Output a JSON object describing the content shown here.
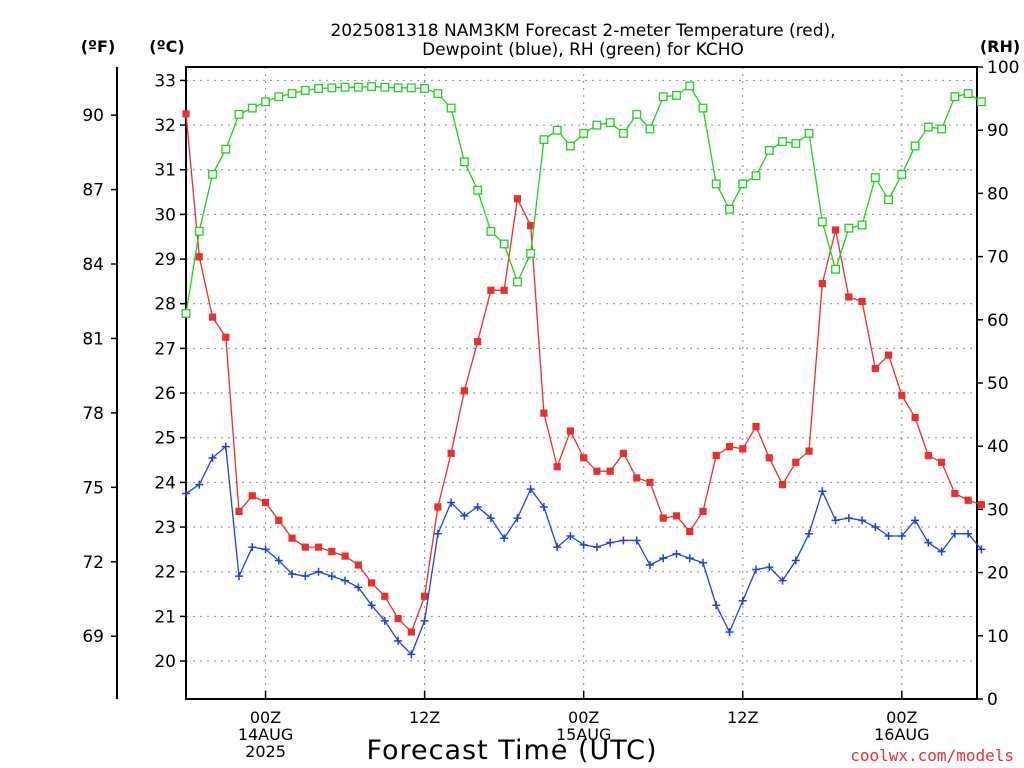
{
  "chart_data": {
    "type": "line",
    "title_line1": "2025081318 NAM3KM Forecast 2-meter Temperature (red),",
    "title_line2": "Dewpoint (blue), RH (green) for KCHO",
    "xlabel": "Forecast Time (UTC)",
    "credit": "coolwx.com/models",
    "left_outer_unit": "(ºF)",
    "left_inner_unit": "(ºC)",
    "right_unit": "(RH)",
    "grid": true,
    "x_ticks": [
      {
        "h": 6,
        "lines": [
          "00Z",
          "14AUG",
          "2025"
        ]
      },
      {
        "h": 18,
        "lines": [
          "12Z"
        ]
      },
      {
        "h": 30,
        "lines": [
          "00Z",
          "15AUG"
        ]
      },
      {
        "h": 42,
        "lines": [
          "12Z"
        ]
      },
      {
        "h": 54,
        "lines": [
          "00Z",
          "16AUG"
        ]
      }
    ],
    "x_unit": "hours after 2025-08-13 18Z",
    "x_range": [
      0,
      59.67
    ],
    "c_axis": {
      "range": [
        19.15,
        33.3
      ],
      "ticks": [
        20,
        21,
        22,
        23,
        24,
        25,
        26,
        27,
        28,
        29,
        30,
        31,
        32,
        33
      ]
    },
    "f_axis": {
      "ticks": [
        69,
        72,
        75,
        78,
        81,
        84,
        87,
        90
      ]
    },
    "rh_axis": {
      "range": [
        0,
        100
      ],
      "ticks": [
        0,
        10,
        20,
        30,
        40,
        50,
        60,
        70,
        80,
        90,
        100
      ]
    },
    "series": [
      {
        "name": "Temperature",
        "unit": "C",
        "color": "#e83030",
        "marker": "filled-square",
        "x": [
          0,
          1,
          2,
          3,
          4,
          5,
          6,
          7,
          8,
          9,
          10,
          11,
          12,
          13,
          14,
          15,
          16,
          17,
          18,
          19,
          20,
          21,
          22,
          23,
          24,
          25,
          26,
          27,
          28,
          29,
          30,
          31,
          32,
          33,
          34,
          35,
          36,
          37,
          38,
          39,
          40,
          41,
          42,
          43,
          44,
          45,
          46,
          47,
          48,
          49,
          50,
          51,
          52,
          53,
          54,
          55,
          56,
          57,
          58,
          59,
          60
        ],
        "values": [
          32.25,
          29.05,
          27.7,
          27.25,
          23.35,
          23.7,
          23.55,
          23.15,
          22.75,
          22.55,
          22.55,
          22.45,
          22.35,
          22.15,
          21.75,
          21.45,
          20.95,
          20.65,
          21.45,
          23.45,
          24.65,
          26.05,
          27.15,
          28.3,
          28.3,
          30.35,
          29.75,
          25.55,
          24.35,
          25.15,
          24.55,
          24.25,
          24.25,
          24.65,
          24.1,
          24.0,
          23.2,
          23.25,
          22.9,
          23.35,
          24.6,
          24.8,
          24.75,
          25.25,
          24.55,
          23.95,
          24.45,
          24.7,
          28.45,
          29.65,
          28.15,
          28.05,
          26.55,
          26.85,
          25.95,
          25.45,
          24.6,
          24.45,
          23.75,
          23.6,
          23.5
        ]
      },
      {
        "name": "Dewpoint",
        "unit": "C",
        "color": "#2040e0",
        "marker": "plus",
        "x": [
          0,
          1,
          2,
          3,
          4,
          5,
          6,
          7,
          8,
          9,
          10,
          11,
          12,
          13,
          14,
          15,
          16,
          17,
          18,
          19,
          20,
          21,
          22,
          23,
          24,
          25,
          26,
          27,
          28,
          29,
          30,
          31,
          32,
          33,
          34,
          35,
          36,
          37,
          38,
          39,
          40,
          41,
          42,
          43,
          44,
          45,
          46,
          47,
          48,
          49,
          50,
          51,
          52,
          53,
          54,
          55,
          56,
          57,
          58,
          59,
          60
        ],
        "values": [
          23.75,
          23.95,
          24.55,
          24.8,
          21.9,
          22.55,
          22.5,
          22.25,
          21.95,
          21.9,
          22.0,
          21.9,
          21.8,
          21.65,
          21.25,
          20.9,
          20.45,
          20.15,
          20.9,
          22.85,
          23.55,
          23.25,
          23.45,
          23.2,
          22.75,
          23.2,
          23.85,
          23.45,
          22.55,
          22.8,
          22.6,
          22.55,
          22.65,
          22.7,
          22.7,
          22.15,
          22.3,
          22.4,
          22.3,
          22.2,
          21.25,
          20.65,
          21.35,
          22.05,
          22.1,
          21.8,
          22.25,
          22.85,
          23.8,
          23.15,
          23.2,
          23.15,
          23.0,
          22.8,
          22.8,
          23.15,
          22.65,
          22.45,
          22.85,
          22.85,
          22.5
        ]
      },
      {
        "name": "RH",
        "unit": "%",
        "color": "#20d020",
        "marker": "open-square",
        "x": [
          0,
          1,
          2,
          3,
          4,
          5,
          6,
          7,
          8,
          9,
          10,
          11,
          12,
          13,
          14,
          15,
          16,
          17,
          18,
          19,
          20,
          21,
          22,
          23,
          24,
          25,
          26,
          27,
          28,
          29,
          30,
          31,
          32,
          33,
          34,
          35,
          36,
          37,
          38,
          39,
          40,
          41,
          42,
          43,
          44,
          45,
          46,
          47,
          48,
          49,
          50,
          51,
          52,
          53,
          54,
          55,
          56,
          57,
          58,
          59,
          60
        ],
        "values": [
          61,
          74,
          83,
          87,
          92.5,
          93.5,
          94.5,
          95.3,
          95.8,
          96.3,
          96.6,
          96.7,
          96.8,
          96.8,
          96.9,
          96.8,
          96.7,
          96.7,
          96.6,
          95.8,
          93.5,
          85,
          80.5,
          74,
          72,
          66,
          70.5,
          88.5,
          90,
          87.5,
          89.5,
          90.8,
          91.2,
          89.5,
          92.5,
          90.2,
          95.3,
          95.5,
          97,
          93.5,
          81.5,
          77.5,
          81.5,
          82.8,
          86.8,
          88.2,
          87.9,
          89.5,
          75.5,
          68,
          74.5,
          75,
          82.5,
          79,
          83,
          87.5,
          90.5,
          90.2,
          95.3,
          95.8,
          94.5
        ]
      }
    ]
  }
}
